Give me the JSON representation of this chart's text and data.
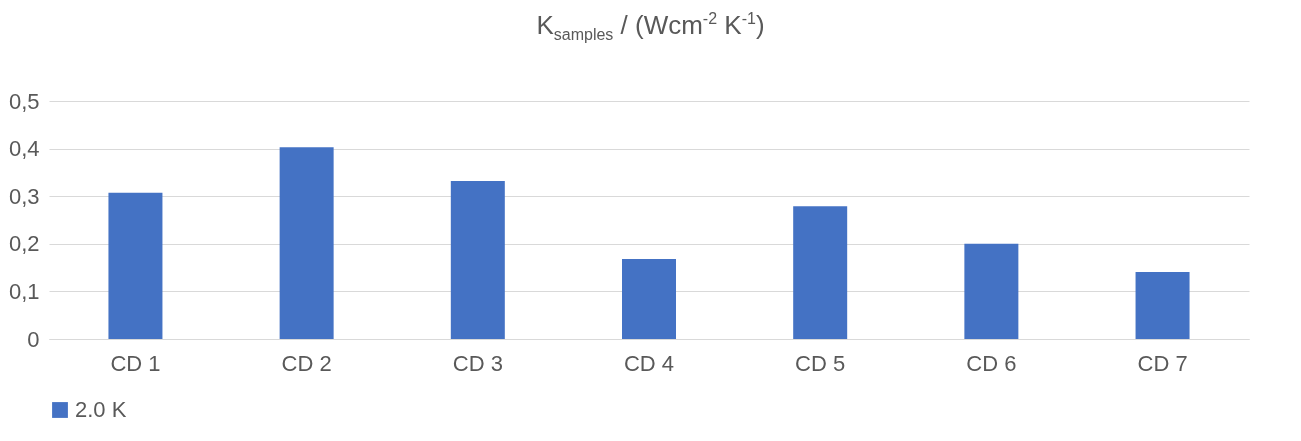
{
  "chart_data": {
    "type": "bar",
    "title": "K$_{samples}$ / (Wcm$^{-2}$ K$^{-1}$)",
    "categories": [
      "CD 1",
      "CD 2",
      "CD 3",
      "CD 4",
      "CD 5",
      "CD 6",
      "CD 7"
    ],
    "series": [
      {
        "name": "2.0 K",
        "color": "#4472c4",
        "values": [
          0.307,
          0.403,
          0.332,
          0.168,
          0.279,
          0.2,
          0.141
        ]
      }
    ],
    "ylim": [
      0,
      0.5
    ],
    "yticks": [
      0,
      {
        "value": 0.1,
        "label": "0,1"
      },
      {
        "value": 0.2,
        "label": "0,2"
      },
      {
        "value": 0.3,
        "label": "0,3"
      },
      {
        "value": 0.4,
        "label": "0,4"
      },
      {
        "value": 0.5,
        "label": "0,5"
      }
    ],
    "grid": "y",
    "legend": "bottom"
  }
}
